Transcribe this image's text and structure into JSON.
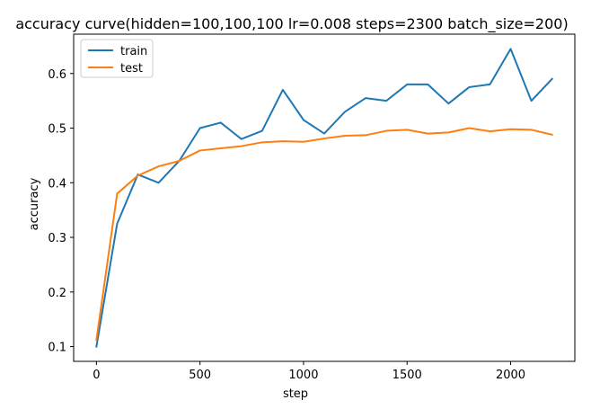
{
  "chart_data": {
    "type": "line",
    "title": "accuracy curve(hidden=100,100,100 lr=0.008 steps=2300 batch_size=200)",
    "xlabel": "step",
    "ylabel": "accuracy",
    "xlim": [
      -110,
      2310
    ],
    "ylim": [
      0.073,
      0.672
    ],
    "xticks": [
      0,
      500,
      1000,
      1500,
      2000
    ],
    "xtick_labels": [
      "0",
      "500",
      "1000",
      "1500",
      "2000"
    ],
    "yticks": [
      0.1,
      0.2,
      0.3,
      0.4,
      0.5,
      0.6
    ],
    "ytick_labels": [
      "0.1",
      "0.2",
      "0.3",
      "0.4",
      "0.5",
      "0.6"
    ],
    "grid": false,
    "legend": "upper-left",
    "x": [
      0,
      100,
      200,
      300,
      400,
      500,
      600,
      700,
      800,
      900,
      1000,
      1100,
      1200,
      1300,
      1400,
      1500,
      1600,
      1700,
      1800,
      1900,
      2000,
      2100,
      2200
    ],
    "series": [
      {
        "name": "train",
        "color": "#1f77b4",
        "values": [
          0.1,
          0.325,
          0.415,
          0.4,
          0.44,
          0.5,
          0.51,
          0.48,
          0.495,
          0.57,
          0.515,
          0.49,
          0.53,
          0.555,
          0.55,
          0.58,
          0.58,
          0.545,
          0.575,
          0.58,
          0.645,
          0.55,
          0.59
        ]
      },
      {
        "name": "test",
        "color": "#ff7f0e",
        "values": [
          0.112,
          0.38,
          0.413,
          0.43,
          0.44,
          0.459,
          0.463,
          0.467,
          0.474,
          0.476,
          0.475,
          0.481,
          0.486,
          0.487,
          0.495,
          0.497,
          0.49,
          0.492,
          0.5,
          0.494,
          0.498,
          0.497,
          0.488
        ]
      }
    ]
  }
}
